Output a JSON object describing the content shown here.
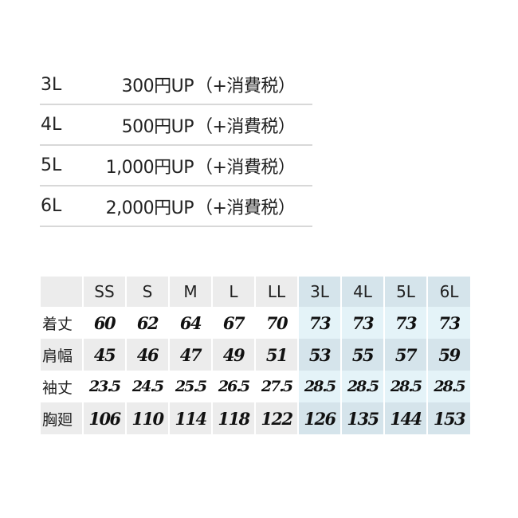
{
  "surcharges": [
    {
      "size": "3L",
      "amount": "300円UP",
      "note": "（+消費税）"
    },
    {
      "size": "4L",
      "amount": "500円UP",
      "note": "（+消費税）"
    },
    {
      "size": "5L",
      "amount": "1,000円UP",
      "note": "（+消費税）"
    },
    {
      "size": "6L",
      "amount": "2,000円UP",
      "note": "（+消費税）"
    }
  ],
  "size_table": {
    "headers": [
      "",
      "SS",
      "S",
      "M",
      "L",
      "LL",
      "3L",
      "4L",
      "5L",
      "6L"
    ],
    "rows": [
      {
        "label": "着丈",
        "values": [
          "60",
          "62",
          "64",
          "67",
          "70",
          "73",
          "73",
          "73",
          "73"
        ]
      },
      {
        "label": "肩幅",
        "values": [
          "45",
          "46",
          "47",
          "49",
          "51",
          "53",
          "55",
          "57",
          "59"
        ]
      },
      {
        "label": "袖丈",
        "values": [
          "23.5",
          "24.5",
          "25.5",
          "26.5",
          "27.5",
          "28.5",
          "28.5",
          "28.5",
          "28.5"
        ]
      },
      {
        "label": "胸廻",
        "values": [
          "106",
          "110",
          "114",
          "118",
          "122",
          "126",
          "135",
          "144",
          "153"
        ]
      }
    ],
    "colors": {
      "header_gray": "#ececec",
      "highlight_blue": "#d5e4eb",
      "highlight_light_blue": "#e4f3f8"
    }
  }
}
